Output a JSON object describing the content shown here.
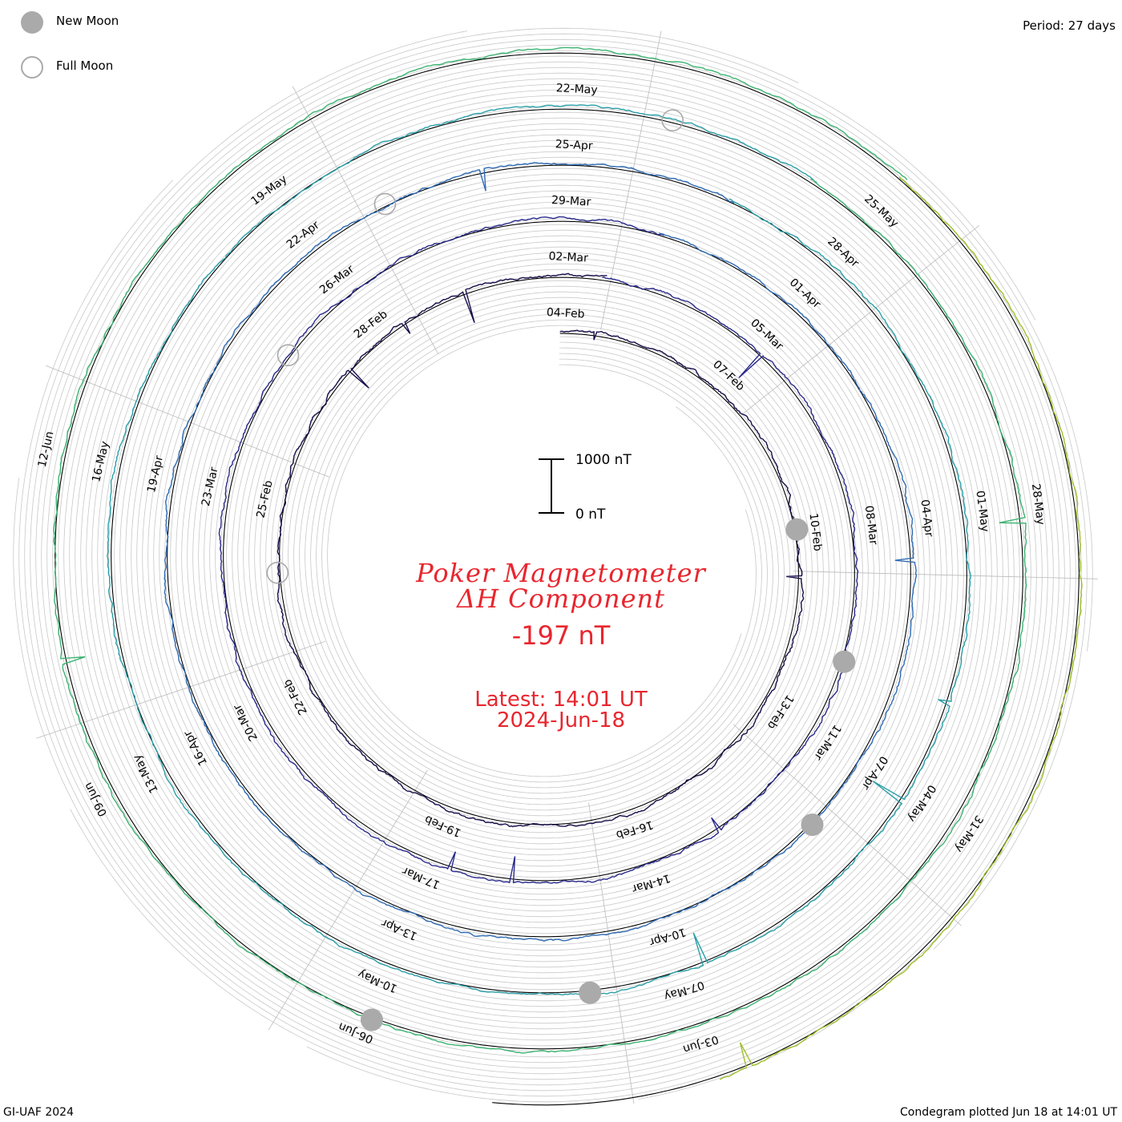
{
  "legend": {
    "new_moon_label": "New Moon",
    "full_moon_label": "Full Moon"
  },
  "period_label": "Period: 27 days",
  "footer_left": "GI-UAF 2024",
  "footer_right": "Condegram plotted Jun 18 at 14:01 UT",
  "title_line1": "Poker Magnetometer",
  "title_line2": "ΔH Component",
  "current_value": "-197 nT",
  "latest_line1": "Latest: 14:01 UT",
  "latest_line2": "2024-Jun-18",
  "colors": {
    "accent_red": "#e8262e",
    "moon_grey": "#aaaaaa",
    "grid": "#bbbbbb"
  },
  "chart_data": {
    "type": "line",
    "title": "Poker Magnetometer ΔH Component",
    "plot_style": "condegram spiral (polar), one revolution per 27-day period",
    "period_days": 27,
    "scale_bar": {
      "top_label": "1000 nT",
      "bottom_label": "0 nT",
      "min": 0,
      "max": 1000,
      "unit": "nT"
    },
    "date_labels": [
      "04-Feb",
      "07-Feb",
      "10-Feb",
      "13-Feb",
      "16-Feb",
      "19-Feb",
      "22-Feb",
      "25-Feb",
      "28-Feb",
      "02-Mar",
      "05-Mar",
      "08-Mar",
      "11-Mar",
      "14-Mar",
      "17-Mar",
      "20-Mar",
      "23-Mar",
      "26-Mar",
      "29-Mar",
      "01-Apr",
      "04-Apr",
      "07-Apr",
      "10-Apr",
      "13-Apr",
      "16-Apr",
      "19-Apr",
      "22-Apr",
      "25-Apr",
      "28-Apr",
      "01-May",
      "04-May",
      "07-May",
      "10-May",
      "13-May",
      "16-May",
      "19-May",
      "22-May",
      "25-May",
      "28-May",
      "31-May",
      "03-Jun",
      "06-Jun",
      "09-Jun",
      "12-Jun"
    ],
    "series": [
      {
        "color": "#1a0f4a"
      },
      {
        "color": "#2a2a8c"
      },
      {
        "color": "#2f6bb4"
      },
      {
        "color": "#2a9fa8"
      },
      {
        "color": "#3cb371"
      },
      {
        "color": "#9fc02a"
      },
      {
        "color": "#c9a020"
      },
      {
        "color": "#c47012"
      },
      {
        "color": "#b01818"
      }
    ],
    "latest_value_nT": -197,
    "latest_time": "2024-Jun-18 14:01 UT",
    "moon_markers": {
      "new_moon_dates": [
        "10-Feb",
        "10-Mar",
        "08-Apr",
        "08-May",
        "06-Jun"
      ],
      "full_moon_dates": [
        "24-Feb",
        "25-Mar",
        "23-Apr",
        "23-May"
      ]
    },
    "grid": true
  }
}
